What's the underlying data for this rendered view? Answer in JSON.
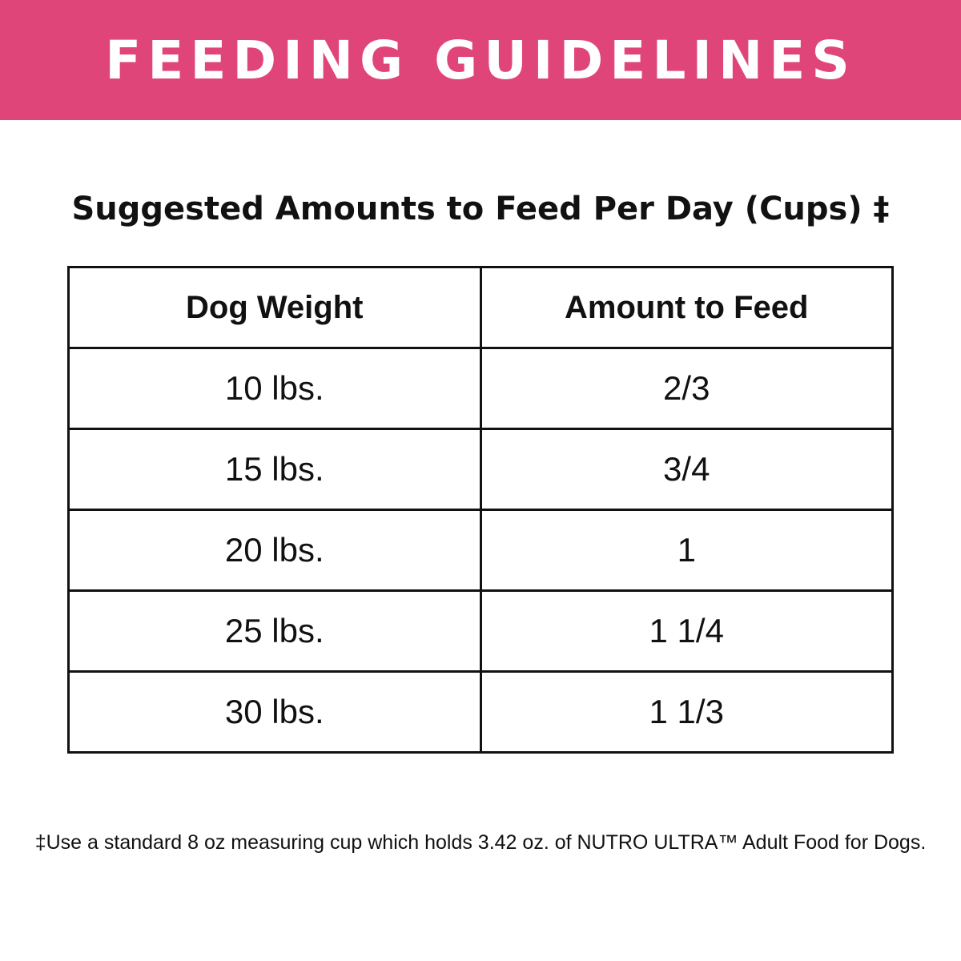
{
  "header": {
    "title": "FEEDING GUIDELINES"
  },
  "subtitle": "Suggested Amounts to Feed Per Day (Cups) ‡",
  "table": {
    "columns": [
      "Dog Weight",
      "Amount to Feed"
    ],
    "rows": [
      [
        "10 lbs.",
        "2/3"
      ],
      [
        "15 lbs.",
        "3/4"
      ],
      [
        "20 lbs.",
        "1"
      ],
      [
        "25 lbs.",
        "1 1/4"
      ],
      [
        "30 lbs.",
        "1 1/3"
      ]
    ]
  },
  "footnote": "‡Use a standard 8 oz measuring cup which holds 3.42 oz. of NUTRO ULTRA™ Adult Food for Dogs."
}
